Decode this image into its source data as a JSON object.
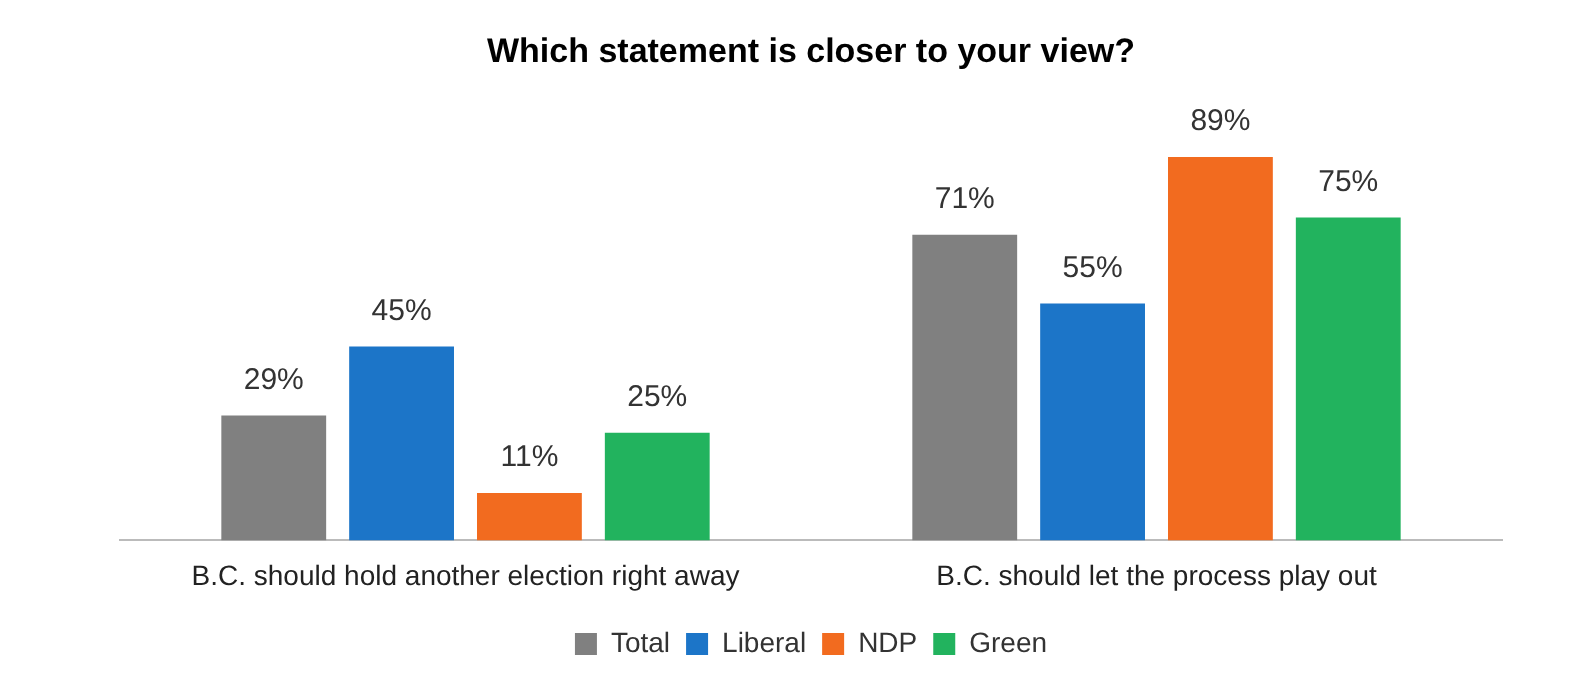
{
  "chart_data": {
    "type": "bar",
    "title": "Which statement is closer to your view?",
    "categories": [
      "B.C. should hold another election right away",
      "B.C. should let the process play out"
    ],
    "series": [
      {
        "name": "Total",
        "color": "#808080",
        "values": [
          29,
          71
        ],
        "value_labels": [
          "29%",
          "71%"
        ]
      },
      {
        "name": "Liberal",
        "color": "#1c75c8",
        "values": [
          45,
          55
        ],
        "value_labels": [
          "45%",
          "55%"
        ]
      },
      {
        "name": "NDP",
        "color": "#f26b1f",
        "values": [
          11,
          89
        ],
        "value_labels": [
          "11%",
          "89%"
        ]
      },
      {
        "name": "Green",
        "color": "#22b35e",
        "values": [
          25,
          75
        ],
        "value_labels": [
          "25%",
          "75%"
        ]
      }
    ],
    "legend": "bottom",
    "grid": false
  }
}
